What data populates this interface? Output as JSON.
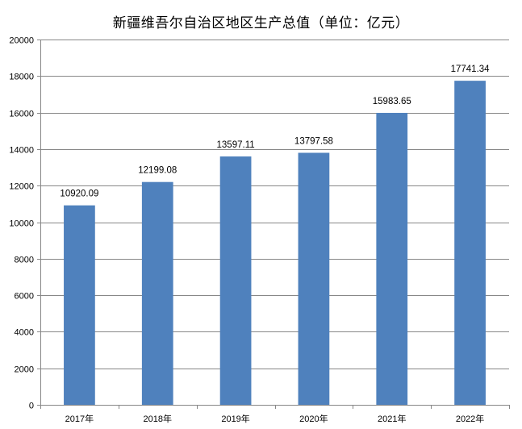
{
  "chart_data": {
    "type": "bar",
    "title": "新疆维吾尔自治区地区生产总值（单位：亿元）",
    "categories": [
      "2017年",
      "2018年",
      "2019年",
      "2020年",
      "2021年",
      "2022年"
    ],
    "values": [
      10920.09,
      12199.08,
      13597.11,
      13797.58,
      15983.65,
      17741.34
    ],
    "value_labels": [
      "10920.09",
      "12199.08",
      "13597.11",
      "13797.58",
      "15983.65",
      "17741.34"
    ],
    "yticks": [
      0,
      2000,
      4000,
      6000,
      8000,
      10000,
      12000,
      14000,
      16000,
      18000,
      20000
    ],
    "ylim": [
      0,
      20000
    ],
    "xlabel": "",
    "ylabel": "",
    "grid": true,
    "legend": "none",
    "bar_color": "#4f81bd",
    "grid_color": "#878787"
  }
}
